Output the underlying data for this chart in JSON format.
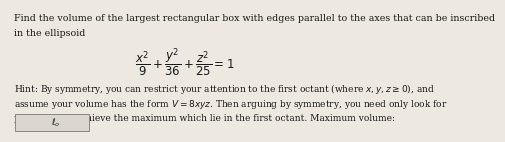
{
  "title_line1": "Find the volume of the largest rectangular box with edges parallel to the axes that can be inscribed",
  "title_line2": "in the ellipsoid",
  "equation": "$\\dfrac{x^2}{9} + \\dfrac{y^2}{36} + \\dfrac{z^2}{25} = 1$",
  "hint_line1": "Hint: By symmetry, you can restrict your attention to the first octant (where $x, y, z \\geq 0$), and",
  "hint_line2": "assume your volume has the form $V = 8xyz$. Then arguing by symmetry, you need only look for",
  "hint_line3": "points which achieve the maximum which lie in the first octant. Maximum volume:",
  "bg_color": "#ede9e0",
  "text_color": "#1a1a1a",
  "font_size_main": 6.8,
  "font_size_eq": 8.5,
  "font_size_hint": 6.5,
  "box_color": "#dbd7ce",
  "box_edge_color": "#888880"
}
